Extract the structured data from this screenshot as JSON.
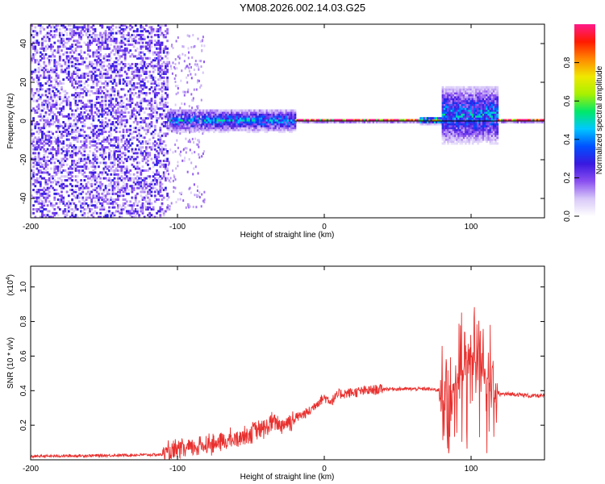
{
  "title": "YM08.2026.002.14.03.G25",
  "colors": {
    "trace": "#e8302e",
    "axes": "#000000",
    "background": "#ffffff"
  },
  "chart_data": [
    {
      "type": "heatmap",
      "xlabel": "Height of straight line (km)",
      "ylabel": "Frequency (Hz)",
      "xlim": [
        -200,
        150
      ],
      "ylim": [
        -50,
        50
      ],
      "x_ticks": [
        -200,
        -100,
        0,
        100
      ],
      "y_ticks": [
        -40,
        -20,
        0,
        20,
        40
      ],
      "colorbar": {
        "label": "Normalized spectral amplitude",
        "range": [
          0,
          1
        ],
        "ticks": [
          0.0,
          0.2,
          0.4,
          0.6,
          0.8
        ],
        "tick_labels": [
          "0.0",
          "0.2",
          "0.4",
          "0.6",
          "0.8"
        ],
        "colormap": [
          "#ffffff",
          "#d8c8f8",
          "#8a4ff0",
          "#3a18e0",
          "#0050ff",
          "#00c8ff",
          "#00e86a",
          "#a8f000",
          "#f0e800",
          "#ff8800",
          "#ff1a00",
          "#ff1a8a"
        ]
      },
      "regions": [
        {
          "x_range": [
            -200,
            -107
          ],
          "freq_band": [
            -50,
            50
          ],
          "description": "broadband noise",
          "level": 0.2
        },
        {
          "x_range": [
            -107,
            -20
          ],
          "freq_band": [
            -6,
            6
          ],
          "level": 0.35
        },
        {
          "x_range": [
            -20,
            65
          ],
          "freq_band": [
            -1,
            1
          ],
          "level": 0.9
        },
        {
          "x_range": [
            65,
            80
          ],
          "freq_band": [
            -2,
            2
          ],
          "level": 0.6
        },
        {
          "x_range": [
            80,
            118
          ],
          "freq_band": [
            -12,
            18
          ],
          "level": 0.35
        },
        {
          "x_range": [
            118,
            150
          ],
          "freq_band": [
            -1,
            1
          ],
          "level": 0.9
        }
      ]
    },
    {
      "type": "line",
      "xlabel": "Height of straight line (km)",
      "ylabel": "SNR (10 * v/v)",
      "y_multiplier": "(x10",
      "y_multiplier_exp": "4",
      "y_multiplier_close": ")",
      "xlim": [
        -200,
        150
      ],
      "ylim": [
        0,
        1.12
      ],
      "x_ticks": [
        -200,
        -100,
        0,
        100
      ],
      "y_ticks": [
        0.2,
        0.4,
        0.6,
        0.8,
        1.0
      ],
      "y_tick_labels": [
        "0.2",
        "0.4",
        "0.6",
        "0.8",
        "1.0"
      ],
      "series": [
        {
          "x": [
            -200,
            -150,
            -110,
            -100,
            -90,
            -80,
            -70,
            -60,
            -50,
            -40,
            -35,
            -30,
            -20,
            -10,
            -5,
            0,
            5,
            10,
            20,
            30,
            40,
            50,
            60,
            70,
            80,
            85,
            90,
            95,
            100,
            105,
            110,
            115,
            120,
            130,
            140,
            150
          ],
          "y": [
            0.02,
            0.025,
            0.03,
            0.05,
            0.07,
            0.09,
            0.1,
            0.12,
            0.16,
            0.18,
            0.22,
            0.2,
            0.24,
            0.28,
            0.33,
            0.36,
            0.34,
            0.38,
            0.39,
            0.4,
            0.41,
            0.41,
            0.41,
            0.41,
            0.4,
            0.4,
            0.45,
            0.55,
            0.6,
            0.65,
            0.5,
            0.4,
            0.38,
            0.38,
            0.37,
            0.37
          ]
        }
      ]
    }
  ]
}
